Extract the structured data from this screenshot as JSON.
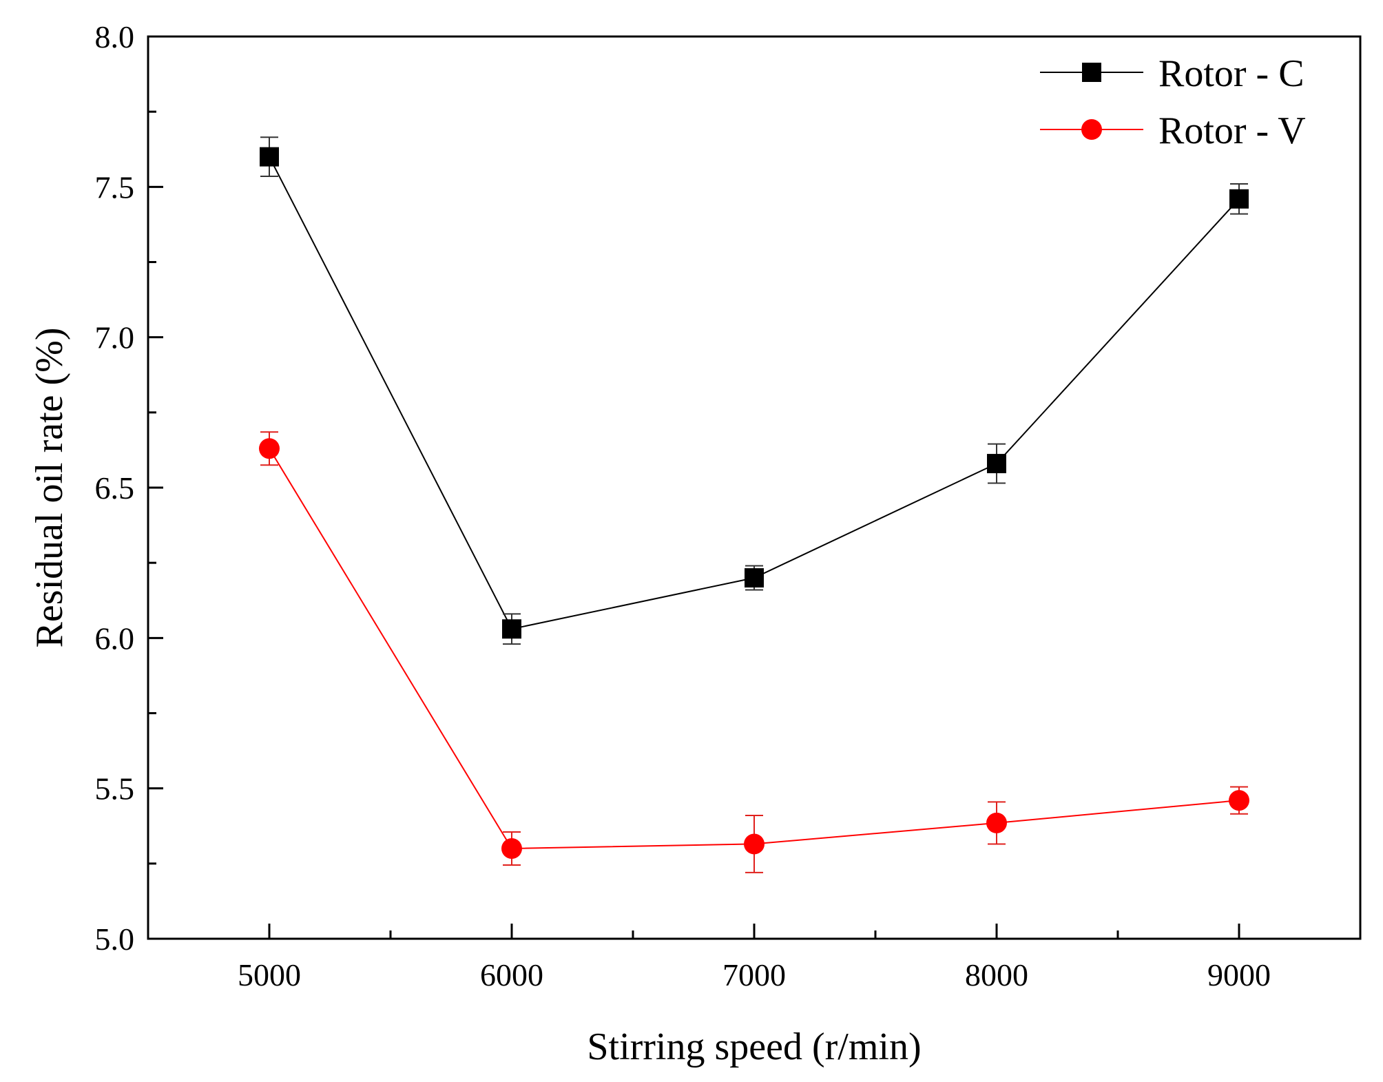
{
  "chart_data": {
    "type": "line",
    "title": "",
    "xlabel": "Stirring speed (r/min)",
    "ylabel": "Residual oil rate (%)",
    "xlim": [
      4500,
      9500
    ],
    "ylim": [
      5.0,
      8.0
    ],
    "xticks": [
      5000,
      6000,
      7000,
      8000,
      9000
    ],
    "xtick_labels": [
      "5000",
      "6000",
      "7000",
      "8000",
      "9000"
    ],
    "yticks": [
      5.0,
      5.5,
      6.0,
      6.5,
      7.0,
      7.5,
      8.0
    ],
    "ytick_labels": [
      "5.0",
      "5.5",
      "6.0",
      "6.5",
      "7.0",
      "7.5",
      "8.0"
    ],
    "grid": false,
    "legend_position": "top-right",
    "x": [
      5000,
      6000,
      7000,
      8000,
      9000
    ],
    "series": [
      {
        "name": "Rotor - C",
        "color": "#000000",
        "marker": "square",
        "values": [
          7.6,
          6.03,
          6.2,
          6.58,
          7.46
        ],
        "errors": [
          0.065,
          0.05,
          0.04,
          0.065,
          0.05
        ]
      },
      {
        "name": "Rotor - V",
        "color": "#ff0000",
        "marker": "circle",
        "values": [
          6.63,
          5.3,
          5.315,
          5.385,
          5.46
        ],
        "errors": [
          0.055,
          0.055,
          0.095,
          0.07,
          0.045
        ]
      }
    ]
  }
}
